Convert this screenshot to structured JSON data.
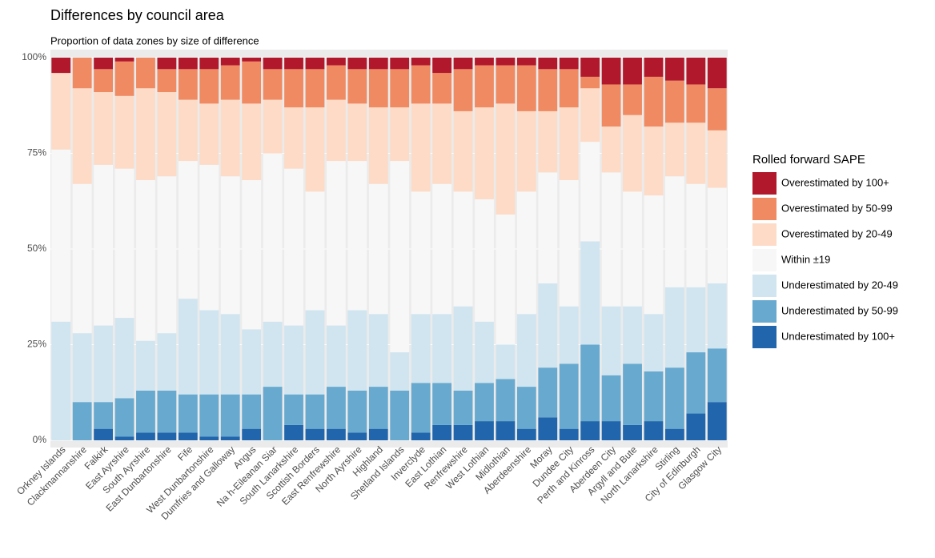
{
  "chart_data": {
    "type": "stacked_bar",
    "title": "Differences by council area",
    "subtitle": "Proportion of data zones by size of difference",
    "legend_title": "Rolled forward SAPE",
    "legend_position": "right",
    "ylim": [
      0,
      100
    ],
    "yticks": [
      {
        "value": 0,
        "label": "0%"
      },
      {
        "value": 25,
        "label": "25%"
      },
      {
        "value": 50,
        "label": "50%"
      },
      {
        "value": 75,
        "label": "75%"
      },
      {
        "value": 100,
        "label": "100%"
      }
    ],
    "grid": true,
    "categories": [
      "Orkney Islands",
      "Clackmannanshire",
      "Falkirk",
      "East Ayrshire",
      "South Ayrshire",
      "East Dunbartonshire",
      "Fife",
      "West Dunbartonshire",
      "Dumfries and Galloway",
      "Angus",
      "Na h-Eileanan Siar",
      "South Lanarkshire",
      "Scottish Borders",
      "East Renfrewshire",
      "North Ayrshire",
      "Highland",
      "Shetland Islands",
      "Inverclyde",
      "East Lothian",
      "Renfrewshire",
      "West Lothian",
      "Midlothian",
      "Aberdeenshire",
      "Moray",
      "Dundee City",
      "Perth and Kinross",
      "Aberdeen City",
      "Argyll and Bute",
      "North Lanarkshire",
      "Stirling",
      "City of Edinburgh",
      "Glasgow City"
    ],
    "series": [
      {
        "name": "Overestimated by 100+",
        "color": "#b2182b",
        "values": [
          4,
          0,
          3,
          1,
          0,
          3,
          3,
          3,
          2,
          1,
          3,
          3,
          3,
          2,
          3,
          3,
          3,
          2,
          4,
          3,
          2,
          2,
          2,
          3,
          3,
          5,
          7,
          7,
          5,
          6,
          7,
          8
        ]
      },
      {
        "name": "Overestimated by 50-99",
        "color": "#ef8a62",
        "values": [
          0,
          8,
          6,
          9,
          8,
          6,
          8,
          9,
          9,
          11,
          8,
          10,
          10,
          9,
          9,
          10,
          10,
          10,
          8,
          11,
          11,
          10,
          12,
          11,
          10,
          3,
          11,
          8,
          13,
          11,
          10,
          11
        ]
      },
      {
        "name": "Overestimated by 20-49",
        "color": "#fddbc7",
        "values": [
          20,
          25,
          19,
          19,
          24,
          22,
          16,
          16,
          20,
          20,
          14,
          16,
          22,
          16,
          15,
          20,
          14,
          23,
          21,
          21,
          24,
          29,
          21,
          16,
          19,
          14,
          12,
          20,
          18,
          14,
          16,
          15
        ]
      },
      {
        "name": "Within ±19",
        "color": "#f7f7f7",
        "values": [
          45,
          39,
          42,
          39,
          42,
          41,
          36,
          38,
          36,
          39,
          44,
          41,
          31,
          43,
          39,
          34,
          50,
          32,
          34,
          30,
          32,
          34,
          32,
          29,
          33,
          26,
          35,
          30,
          31,
          29,
          27,
          25
        ]
      },
      {
        "name": "Underestimated by 20-49",
        "color": "#d1e5f0",
        "values": [
          31,
          18,
          20,
          21,
          13,
          15,
          25,
          22,
          21,
          17,
          17,
          18,
          22,
          16,
          21,
          19,
          10,
          18,
          18,
          22,
          16,
          9,
          19,
          22,
          15,
          27,
          18,
          15,
          15,
          21,
          17,
          17
        ]
      },
      {
        "name": "Underestimated by 50-99",
        "color": "#67a9cf",
        "values": [
          0,
          10,
          7,
          10,
          11,
          11,
          10,
          11,
          11,
          9,
          14,
          8,
          9,
          11,
          11,
          11,
          13,
          13,
          11,
          9,
          10,
          11,
          11,
          13,
          17,
          20,
          12,
          16,
          13,
          16,
          16,
          14
        ]
      },
      {
        "name": "Underestimated by 100+",
        "color": "#2166ac",
        "values": [
          0,
          0,
          3,
          1,
          2,
          2,
          2,
          1,
          1,
          3,
          0,
          4,
          3,
          3,
          2,
          3,
          0,
          2,
          4,
          4,
          5,
          5,
          3,
          6,
          3,
          5,
          5,
          4,
          5,
          3,
          7,
          10
        ]
      }
    ]
  }
}
